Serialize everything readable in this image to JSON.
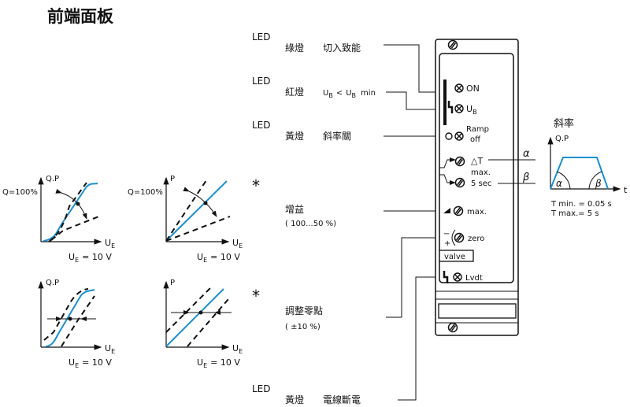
{
  "title": "前端面板",
  "colors": {
    "curve": "#1b8fcf",
    "ink": "#111111"
  },
  "labels": {
    "led": "LED",
    "green": {
      "color": "綠燈",
      "function": "切入致能"
    },
    "red": {
      "color": "紅燈",
      "ub": "U",
      "sub": "B",
      "lt": "<",
      "ub2": "U",
      "sub2": "B",
      "min": "min"
    },
    "yellow_ramp": {
      "color": "黃燈",
      "function": "斜率關"
    },
    "gain": {
      "title": "增益",
      "range": "( 100...50 %)"
    },
    "zero": {
      "title": "調整零點",
      "range": "( ±10 %)"
    },
    "yellow_wire": {
      "color": "黃燈",
      "function": "電線斷電"
    },
    "asterisk": "*"
  },
  "panel": {
    "on": "ON",
    "ub": "U",
    "ub_sub": "B",
    "ramp": "Ramp",
    "off": "off",
    "delta_t": "△T",
    "max": "max.",
    "sec": "5 sec",
    "gain_max": "max.",
    "zero": "zero",
    "valve": "valve",
    "lvdt": "Lvdt",
    "minus": "−",
    "plus": "+"
  },
  "ramp_chart": {
    "title": "斜率",
    "ylabel": "Q.P",
    "xlabel": "t",
    "alpha": "α",
    "beta": "β",
    "tmin": "T min. = 0.05 s",
    "tmax": "T max.= 5 s"
  },
  "graphs": {
    "q100": "Q=100%",
    "qp": "Q.P",
    "p": "P",
    "ue": "U",
    "ue_sub": "E",
    "ue_val": "= 10 V"
  }
}
